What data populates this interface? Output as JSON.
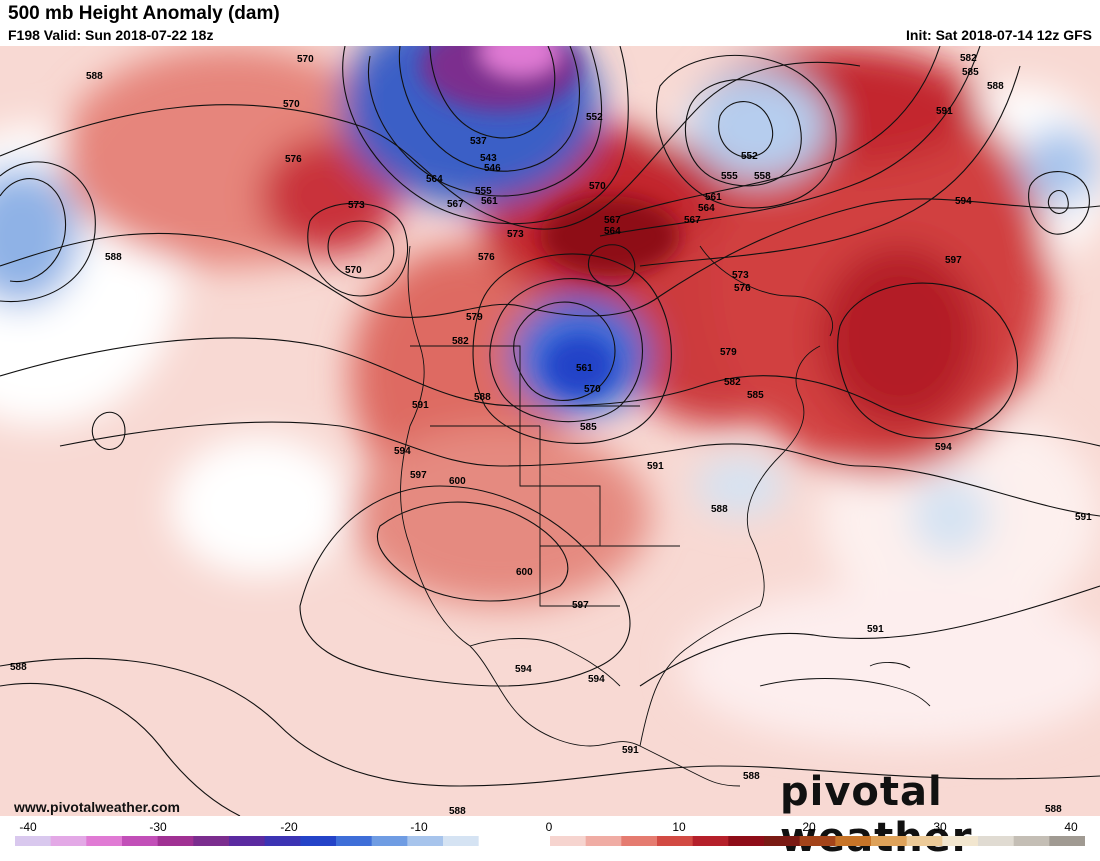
{
  "header": {
    "title": "500 mb Height Anomaly (dam)",
    "valid": "F198 Valid: Sun 2018-07-22 18z",
    "init": "Init: Sat 2018-07-14 12z GFS"
  },
  "footer": {
    "website": "www.pivotalweather.com",
    "brand": "pivotal weather"
  },
  "colorbar": {
    "ticks": [
      "-40",
      "-30",
      "-20",
      "-10",
      "0",
      "10",
      "20",
      "30",
      "40"
    ],
    "colors": [
      "#d9c8ee",
      "#e3a8e6",
      "#e07ad4",
      "#c24fb8",
      "#a03193",
      "#7b2d8e",
      "#5b2aa0",
      "#3c33b3",
      "#2443c8",
      "#3e6ed8",
      "#6f9ce3",
      "#a7c4ec",
      "#d5e3f3",
      "#ffffff",
      "#ffffff",
      "#f6d4cf",
      "#f0aca4",
      "#e57b70",
      "#d24a43",
      "#b5202a",
      "#8e0d18",
      "#7a1a14",
      "#a4441a",
      "#c77428",
      "#dea25a",
      "#ecca98",
      "#f2e6cf",
      "#e0dbd2",
      "#c4beb5",
      "#a09a92"
    ]
  },
  "map": {
    "contour_labels": [
      {
        "text": "588"
      },
      {
        "text": "570"
      },
      {
        "text": "570"
      },
      {
        "text": "576"
      },
      {
        "text": "573"
      },
      {
        "text": "570"
      },
      {
        "text": "588"
      },
      {
        "text": "537"
      },
      {
        "text": "543"
      },
      {
        "text": "546"
      },
      {
        "text": "552"
      },
      {
        "text": "564"
      },
      {
        "text": "567"
      },
      {
        "text": "555"
      },
      {
        "text": "561"
      },
      {
        "text": "570"
      },
      {
        "text": "567"
      },
      {
        "text": "564"
      },
      {
        "text": "573"
      },
      {
        "text": "576"
      },
      {
        "text": "579"
      },
      {
        "text": "582"
      },
      {
        "text": "588"
      },
      {
        "text": "561"
      },
      {
        "text": "570"
      },
      {
        "text": "585"
      },
      {
        "text": "591"
      },
      {
        "text": "594"
      },
      {
        "text": "597"
      },
      {
        "text": "600"
      },
      {
        "text": "600"
      },
      {
        "text": "597"
      },
      {
        "text": "594"
      },
      {
        "text": "594"
      },
      {
        "text": "591"
      },
      {
        "text": "591"
      },
      {
        "text": "588"
      },
      {
        "text": "552"
      },
      {
        "text": "555"
      },
      {
        "text": "558"
      },
      {
        "text": "561"
      },
      {
        "text": "564"
      },
      {
        "text": "567"
      },
      {
        "text": "573"
      },
      {
        "text": "576"
      },
      {
        "text": "579"
      },
      {
        "text": "582"
      },
      {
        "text": "585"
      },
      {
        "text": "582"
      },
      {
        "text": "585"
      },
      {
        "text": "588"
      },
      {
        "text": "591"
      },
      {
        "text": "594"
      },
      {
        "text": "597"
      },
      {
        "text": "594"
      },
      {
        "text": "591"
      },
      {
        "text": "591"
      },
      {
        "text": "588"
      },
      {
        "text": "588"
      },
      {
        "text": "588"
      },
      {
        "text": "588"
      }
    ]
  }
}
